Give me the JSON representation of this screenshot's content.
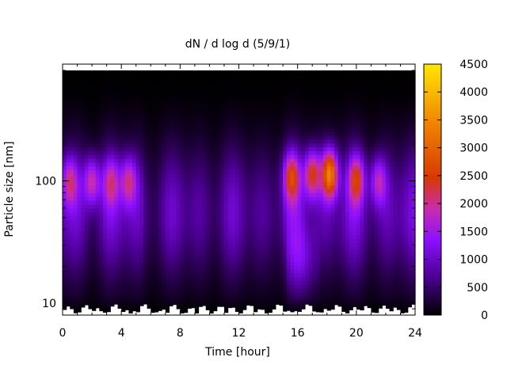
{
  "chart_data": {
    "type": "heatmap",
    "title": "dN / d log d (5/9/1)",
    "xlabel": "Time [hour]",
    "ylabel": "Particle size [nm]",
    "xlim": [
      0,
      24
    ],
    "ylim": [
      8,
      900
    ],
    "y_scale": "log",
    "x_ticks": [
      0,
      4,
      8,
      12,
      16,
      20,
      24
    ],
    "x_tick_labels": [
      "0",
      "4",
      "8",
      "12",
      "16",
      "20",
      "24"
    ],
    "y_ticks": [
      10,
      100
    ],
    "y_tick_labels": [
      "10",
      "100"
    ],
    "colorbar": {
      "range": [
        0,
        4500
      ],
      "ticks": [
        0,
        500,
        1000,
        1500,
        2000,
        2500,
        3000,
        3500,
        4000,
        4500
      ],
      "tick_labels": [
        "0",
        "500",
        "1000",
        "1500",
        "2000",
        "2500",
        "3000",
        "3500",
        "4000",
        "4500"
      ],
      "colormap": "gnuplot-pm3d-black-purple-red-yellow"
    },
    "colors": {
      "c0": "#000000",
      "c1": "#50009a",
      "c2": "#8c10ff",
      "c3": "#c82cb0",
      "c4": "#d73a00",
      "c5": "#f28a00",
      "c6": "#ffe800"
    },
    "modes": [
      {
        "time": 0.5,
        "peak_size": 100,
        "peak_value": 2450
      },
      {
        "time": 2.0,
        "peak_size": 100,
        "peak_value": 2650
      },
      {
        "time": 3.3,
        "peak_size": 100,
        "peak_value": 2300
      },
      {
        "time": 4.5,
        "peak_size": 100,
        "peak_value": 2500
      },
      {
        "time": 15.6,
        "peak_size": 110,
        "peak_value": 2900
      },
      {
        "time": 17.0,
        "peak_size": 115,
        "peak_value": 3100
      },
      {
        "time": 18.2,
        "peak_size": 115,
        "peak_value": 3900
      },
      {
        "time": 20.0,
        "peak_size": 105,
        "peak_value": 2800
      },
      {
        "time": 21.5,
        "peak_size": 100,
        "peak_value": 2400
      }
    ]
  }
}
